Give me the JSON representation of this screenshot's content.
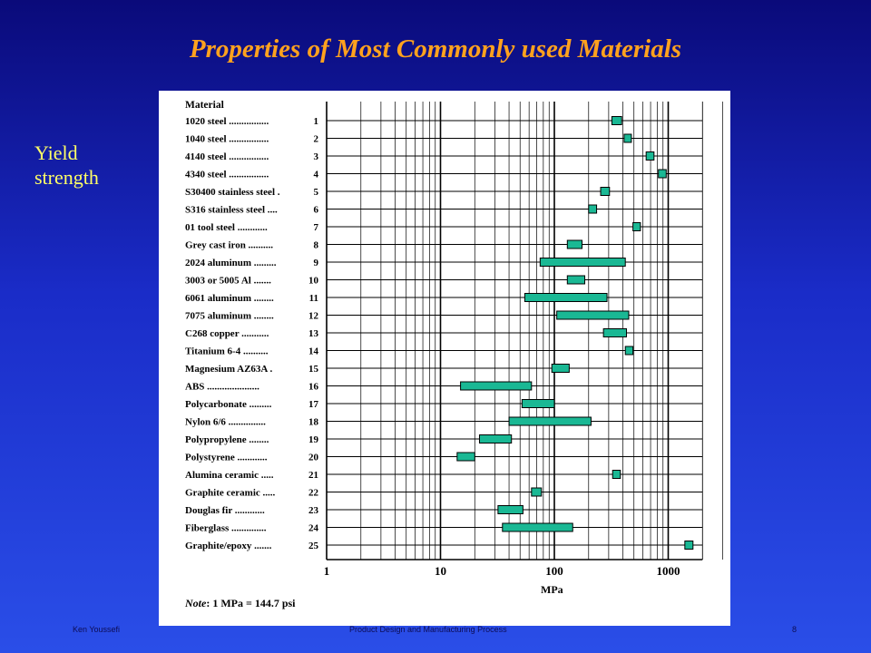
{
  "slide": {
    "title": "Properties of Most Commonly used Materials",
    "side_label": "Yield strength",
    "footer_left": "Ken Youssefi",
    "footer_center": "Product Design and Manufacturing Process",
    "page_number": "8"
  },
  "colors": {
    "bar_fill": "#1ab894",
    "grid": "#000000",
    "title": "#ffa21e",
    "label": "#ffff66"
  },
  "chart_data": {
    "type": "bar",
    "orientation": "horizontal-range",
    "x_scale": "log",
    "xlim": [
      1,
      2000
    ],
    "xlabel": "MPa",
    "x_ticks": [
      1,
      10,
      100,
      1000
    ],
    "x_tick_labels": [
      "1",
      "10",
      "100",
      "1000"
    ],
    "header": "Material",
    "note_prefix": "Note",
    "note_text": ": 1 MPa = 144.7 psi",
    "grid": true,
    "rows": [
      {
        "label": "1020 steel",
        "dots": "................",
        "num": "1",
        "lo": 320,
        "hi": 390
      },
      {
        "label": "1040 steel",
        "dots": "................",
        "num": "2",
        "lo": 410,
        "hi": 470
      },
      {
        "label": "4140 steel",
        "dots": "................",
        "num": "3",
        "lo": 640,
        "hi": 750
      },
      {
        "label": "4340 steel",
        "dots": "................",
        "num": "4",
        "lo": 820,
        "hi": 960
      },
      {
        "label": "S30400 stainless steel",
        "dots": ".",
        "num": "5",
        "lo": 255,
        "hi": 305
      },
      {
        "label": "S316 stainless steel",
        "dots": "....",
        "num": "6",
        "lo": 200,
        "hi": 235
      },
      {
        "label": "01 tool steel",
        "dots": "............",
        "num": "7",
        "lo": 490,
        "hi": 570
      },
      {
        "label": "Grey cast iron",
        "dots": "..........",
        "num": "8",
        "lo": 130,
        "hi": 175
      },
      {
        "label": "2024 aluminum",
        "dots": ".........",
        "num": "9",
        "lo": 75,
        "hi": 420
      },
      {
        "label": "3003 or 5005 Al",
        "dots": ".......",
        "num": "10",
        "lo": 130,
        "hi": 185
      },
      {
        "label": "6061 aluminum",
        "dots": "........",
        "num": "11",
        "lo": 55,
        "hi": 290
      },
      {
        "label": "7075 aluminum",
        "dots": "........",
        "num": "12",
        "lo": 105,
        "hi": 450
      },
      {
        "label": "C268 copper",
        "dots": "...........",
        "num": "13",
        "lo": 270,
        "hi": 430
      },
      {
        "label": "Titanium 6-4",
        "dots": "..........",
        "num": "14",
        "lo": 420,
        "hi": 490
      },
      {
        "label": "Magnesium AZ63A",
        "dots": ".",
        "num": "15",
        "lo": 95,
        "hi": 135
      },
      {
        "label": "ABS",
        "dots": ".....................",
        "num": "16",
        "lo": 15,
        "hi": 63
      },
      {
        "label": "Polycarbonate",
        "dots": ".........",
        "num": "17",
        "lo": 52,
        "hi": 100
      },
      {
        "label": "Nylon 6/6",
        "dots": "...............",
        "num": "18",
        "lo": 40,
        "hi": 210
      },
      {
        "label": "Polypropylene",
        "dots": "........",
        "num": "19",
        "lo": 22,
        "hi": 42
      },
      {
        "label": "Polystyrene",
        "dots": "............",
        "num": "20",
        "lo": 14,
        "hi": 20
      },
      {
        "label": "Alumina ceramic",
        "dots": ".....",
        "num": "21",
        "lo": 325,
        "hi": 380
      },
      {
        "label": "Graphite ceramic",
        "dots": ".....",
        "num": "22",
        "lo": 63,
        "hi": 77
      },
      {
        "label": "Douglas fir",
        "dots": "............",
        "num": "23",
        "lo": 32,
        "hi": 53
      },
      {
        "label": "Fiberglass",
        "dots": "..............",
        "num": "24",
        "lo": 35,
        "hi": 145
      },
      {
        "label": "Graphite/epoxy",
        "dots": ".......",
        "num": "25",
        "lo": 1400,
        "hi": 1650
      }
    ]
  }
}
